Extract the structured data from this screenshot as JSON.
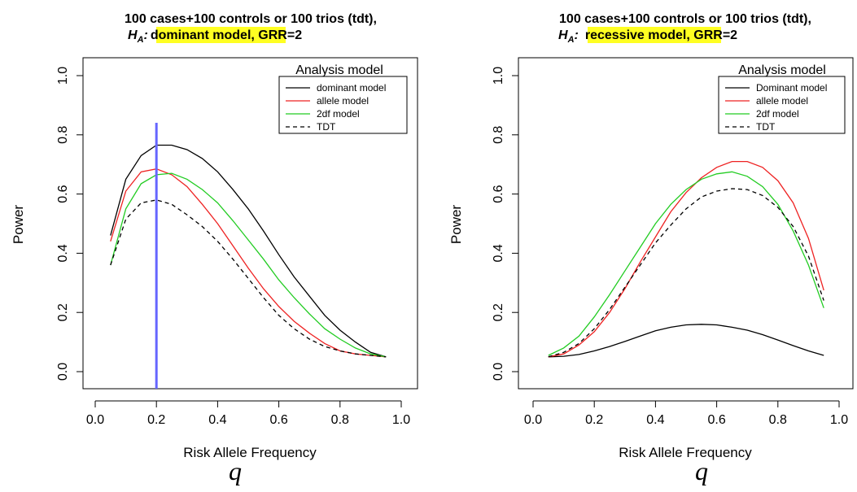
{
  "colors": {
    "dominant": "#000000",
    "allele": "#ee2222",
    "twodf": "#22cc22",
    "tdt": "#000000",
    "highlight": "#ffff22",
    "marker": "#6666ff"
  },
  "chart_data": [
    {
      "type": "line",
      "title_line1": "100 cases+100 controls or 100 trios (tdt),",
      "title_h": "H",
      "title_h_sub": "A",
      "title_colon": ":",
      "title_model": "dominant model",
      "title_suffix": ", GRR=2",
      "xlabel": "Risk Allele Frequency",
      "ylabel": "Power",
      "xsymbol": "q",
      "xlim": [
        0,
        1
      ],
      "ylim": [
        0,
        1
      ],
      "xticks": [
        "0.0",
        "0.2",
        "0.4",
        "0.6",
        "0.8",
        "1.0"
      ],
      "yticks": [
        "0.0",
        "0.2",
        "0.4",
        "0.6",
        "0.8",
        "1.0"
      ],
      "legend_title": "Analysis model",
      "vline_x": 0.2,
      "x": [
        0.05,
        0.1,
        0.15,
        0.2,
        0.25,
        0.3,
        0.35,
        0.4,
        0.45,
        0.5,
        0.55,
        0.6,
        0.65,
        0.7,
        0.75,
        0.8,
        0.85,
        0.9,
        0.95
      ],
      "series": [
        {
          "name": "dominant model",
          "color_key": "dominant",
          "dashed": false,
          "values": [
            0.46,
            0.65,
            0.73,
            0.765,
            0.765,
            0.75,
            0.72,
            0.675,
            0.615,
            0.55,
            0.475,
            0.395,
            0.32,
            0.255,
            0.19,
            0.14,
            0.1,
            0.065,
            0.05
          ]
        },
        {
          "name": "allele model",
          "color_key": "allele",
          "dashed": false,
          "values": [
            0.44,
            0.61,
            0.675,
            0.685,
            0.665,
            0.625,
            0.565,
            0.5,
            0.425,
            0.35,
            0.28,
            0.22,
            0.17,
            0.13,
            0.095,
            0.07,
            0.06,
            0.055,
            0.05
          ]
        },
        {
          "name": "2df model",
          "color_key": "twodf",
          "dashed": false,
          "values": [
            0.36,
            0.55,
            0.635,
            0.665,
            0.67,
            0.65,
            0.615,
            0.57,
            0.51,
            0.445,
            0.38,
            0.31,
            0.25,
            0.195,
            0.145,
            0.11,
            0.08,
            0.06,
            0.05
          ]
        },
        {
          "name": "TDT",
          "color_key": "tdt",
          "dashed": true,
          "values": [
            0.36,
            0.515,
            0.57,
            0.58,
            0.565,
            0.53,
            0.49,
            0.44,
            0.38,
            0.315,
            0.25,
            0.19,
            0.145,
            0.11,
            0.085,
            0.07,
            0.06,
            0.055,
            0.05
          ]
        }
      ]
    },
    {
      "type": "line",
      "title_line1": "100 cases+100 controls or 100 trios (tdt),",
      "title_h": "H",
      "title_h_sub": "A",
      "title_colon": ":",
      "title_model_highlight": "recessive mode",
      "title_model_tail": "l",
      "title_suffix": ", GRR=2",
      "xlabel": "Risk Allele Frequency",
      "ylabel": "Power",
      "xsymbol": "q",
      "xlim": [
        0,
        1
      ],
      "ylim": [
        0,
        1
      ],
      "xticks": [
        "0.0",
        "0.2",
        "0.4",
        "0.6",
        "0.8",
        "1.0"
      ],
      "yticks": [
        "0.0",
        "0.2",
        "0.4",
        "0.6",
        "0.8",
        "1.0"
      ],
      "legend_title": "Analysis model",
      "x": [
        0.05,
        0.1,
        0.15,
        0.2,
        0.25,
        0.3,
        0.35,
        0.4,
        0.45,
        0.5,
        0.55,
        0.6,
        0.65,
        0.7,
        0.75,
        0.8,
        0.85,
        0.9,
        0.95
      ],
      "series": [
        {
          "name": "Dominant model",
          "color_key": "dominant",
          "dashed": false,
          "values": [
            0.05,
            0.052,
            0.058,
            0.07,
            0.085,
            0.102,
            0.12,
            0.138,
            0.15,
            0.158,
            0.16,
            0.158,
            0.15,
            0.14,
            0.125,
            0.107,
            0.088,
            0.07,
            0.055
          ]
        },
        {
          "name": "allele model",
          "color_key": "allele",
          "dashed": false,
          "values": [
            0.05,
            0.06,
            0.09,
            0.135,
            0.2,
            0.28,
            0.37,
            0.455,
            0.54,
            0.605,
            0.655,
            0.69,
            0.71,
            0.71,
            0.69,
            0.645,
            0.57,
            0.45,
            0.275
          ]
        },
        {
          "name": "2df model",
          "color_key": "twodf",
          "dashed": false,
          "values": [
            0.055,
            0.08,
            0.12,
            0.185,
            0.26,
            0.34,
            0.42,
            0.5,
            0.565,
            0.615,
            0.65,
            0.668,
            0.675,
            0.66,
            0.625,
            0.565,
            0.475,
            0.36,
            0.215
          ]
        },
        {
          "name": "TDT",
          "color_key": "tdt",
          "dashed": true,
          "values": [
            0.05,
            0.065,
            0.095,
            0.145,
            0.21,
            0.285,
            0.36,
            0.435,
            0.495,
            0.55,
            0.59,
            0.61,
            0.618,
            0.615,
            0.595,
            0.555,
            0.49,
            0.39,
            0.24
          ]
        }
      ]
    }
  ]
}
